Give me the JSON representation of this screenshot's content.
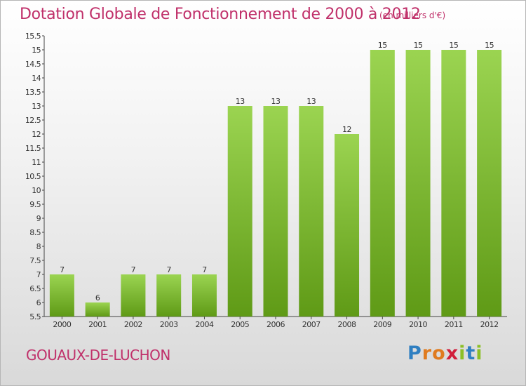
{
  "header": {
    "title": "Dotation Globale de Fonctionnement de 2000 à 2012",
    "unit": "(en milliers d'€)"
  },
  "footer": {
    "commune": "GOUAUX-DE-LUCHON",
    "logo_letters": [
      {
        "char": "P",
        "color": "#2f7fc1"
      },
      {
        "char": "r",
        "color": "#e07b1f"
      },
      {
        "char": "o",
        "color": "#e07b1f"
      },
      {
        "char": "x",
        "color": "#d11f3c"
      },
      {
        "char": "i",
        "color": "#8cbf26"
      },
      {
        "char": "t",
        "color": "#2f7fc1"
      },
      {
        "char": "i",
        "color": "#8cbf26"
      }
    ]
  },
  "colors": {
    "bar_light": "#9bd451",
    "bar_dark": "#5f9a16",
    "title": "#c0306a"
  },
  "chart_data": {
    "type": "bar",
    "categories": [
      "2000",
      "2001",
      "2002",
      "2003",
      "2004",
      "2005",
      "2006",
      "2007",
      "2008",
      "2009",
      "2010",
      "2011",
      "2012"
    ],
    "values": [
      7,
      6,
      7,
      7,
      7,
      13,
      13,
      13,
      12,
      15,
      15,
      15,
      15
    ],
    "ylim": [
      5.5,
      15.5
    ],
    "yticks": [
      "5.5",
      "6",
      "6.5",
      "7",
      "7.5",
      "8",
      "8.5",
      "9",
      "9.5",
      "10",
      "10.5",
      "11",
      "11.5",
      "12",
      "12.5",
      "13",
      "13.5",
      "14",
      "14.5",
      "15",
      "15.5"
    ],
    "grid": false,
    "legend": "none"
  }
}
